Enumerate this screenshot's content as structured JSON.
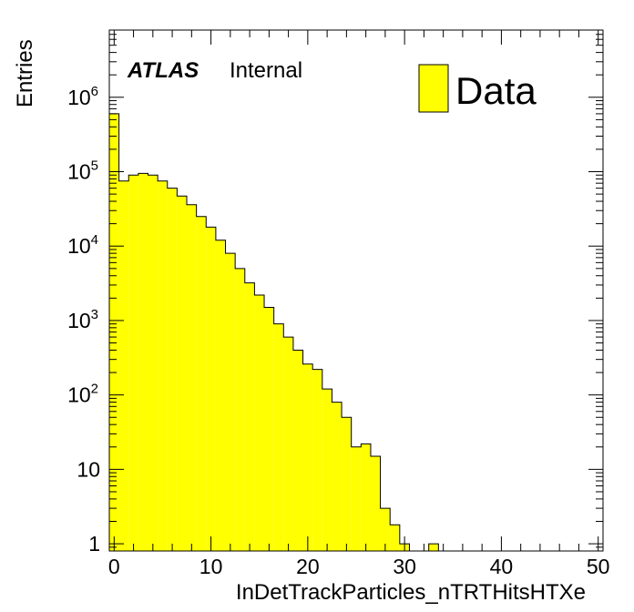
{
  "chart_data": {
    "type": "bar",
    "style": "histogram",
    "xlabel": "InDetTrackParticles_nTRTHitsHTXe",
    "ylabel": "Entries",
    "xlim": [
      -0.5,
      50.5
    ],
    "ylim": [
      0.8,
      8000000
    ],
    "yscale": "log",
    "bin_width": 1,
    "x_tick_labels": [
      "0",
      "10",
      "20",
      "30",
      "40",
      "50"
    ],
    "y_tick_labels": [
      {
        "base": "1",
        "exp": ""
      },
      {
        "base": "10",
        "exp": ""
      },
      {
        "base": "10",
        "exp": "2"
      },
      {
        "base": "10",
        "exp": "3"
      },
      {
        "base": "10",
        "exp": "4"
      },
      {
        "base": "10",
        "exp": "5"
      },
      {
        "base": "10",
        "exp": "6"
      }
    ],
    "atlas_label": "ATLAS",
    "atlas_sublabel": "Internal",
    "legend_position": "top-right",
    "series": [
      {
        "name": "Data",
        "color": "#ffff00",
        "edge_color": "#000000",
        "bin_centers": [
          0,
          1,
          2,
          3,
          4,
          5,
          6,
          7,
          8,
          9,
          10,
          11,
          12,
          13,
          14,
          15,
          16,
          17,
          18,
          19,
          20,
          21,
          22,
          23,
          24,
          25,
          26,
          27,
          28,
          29,
          30,
          31,
          32,
          33
        ],
        "values": [
          600000,
          75000,
          90000,
          95000,
          90000,
          75000,
          60000,
          47000,
          36000,
          25000,
          18000,
          12000,
          8000,
          5000,
          3200,
          2200,
          1500,
          900,
          600,
          400,
          260,
          220,
          120,
          80,
          50,
          20,
          22,
          15,
          3,
          1.8,
          1,
          0,
          0,
          1
        ]
      }
    ]
  }
}
